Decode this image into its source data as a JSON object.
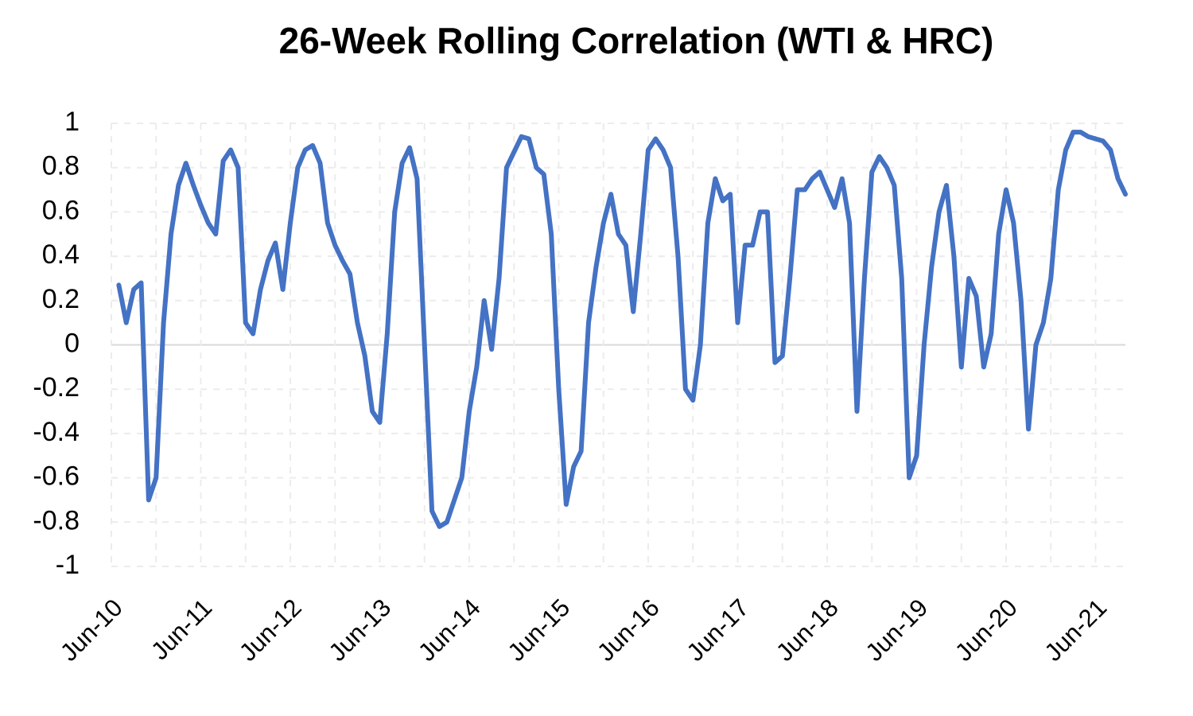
{
  "chart_data": {
    "type": "line",
    "title": "26-Week Rolling Correlation (WTI & HRC)",
    "categories": [
      "Jun-10",
      null,
      null,
      null,
      null,
      null,
      null,
      null,
      null,
      null,
      null,
      null,
      "Jun-11",
      null,
      null,
      null,
      null,
      null,
      null,
      null,
      null,
      null,
      null,
      null,
      "Jun-12",
      null,
      null,
      null,
      null,
      null,
      null,
      null,
      null,
      null,
      null,
      null,
      "Jun-13",
      null,
      null,
      null,
      null,
      null,
      null,
      null,
      null,
      null,
      null,
      null,
      "Jun-14",
      null,
      null,
      null,
      null,
      null,
      null,
      null,
      null,
      null,
      null,
      null,
      "Jun-15",
      null,
      null,
      null,
      null,
      null,
      null,
      null,
      null,
      null,
      null,
      null,
      "Jun-16",
      null,
      null,
      null,
      null,
      null,
      null,
      null,
      null,
      null,
      null,
      null,
      "Jun-17",
      null,
      null,
      null,
      null,
      null,
      null,
      null,
      null,
      null,
      null,
      null,
      "Jun-18",
      null,
      null,
      null,
      null,
      null,
      null,
      null,
      null,
      null,
      null,
      null,
      "Jun-19",
      null,
      null,
      null,
      null,
      null,
      null,
      null,
      null,
      null,
      null,
      null,
      "Jun-20",
      null,
      null,
      null,
      null,
      null,
      null,
      null,
      null,
      null,
      null,
      null,
      "Jun-21",
      null,
      null,
      null,
      null
    ],
    "values": [
      null,
      0.27,
      0.1,
      0.25,
      0.28,
      -0.7,
      -0.6,
      0.1,
      0.5,
      0.72,
      0.82,
      0.72,
      0.63,
      0.55,
      0.5,
      0.83,
      0.88,
      0.8,
      0.1,
      0.05,
      0.25,
      0.38,
      0.46,
      0.25,
      0.55,
      0.8,
      0.88,
      0.9,
      0.82,
      0.55,
      0.45,
      0.38,
      0.32,
      0.1,
      -0.05,
      -0.3,
      -0.35,
      0.05,
      0.6,
      0.82,
      0.89,
      0.75,
      0.0,
      -0.75,
      -0.82,
      -0.8,
      -0.7,
      -0.6,
      -0.3,
      -0.1,
      0.2,
      -0.02,
      0.3,
      0.8,
      0.87,
      0.94,
      0.93,
      0.8,
      0.77,
      0.5,
      -0.2,
      -0.72,
      -0.55,
      -0.48,
      0.1,
      0.35,
      0.55,
      0.68,
      0.5,
      0.45,
      0.15,
      0.5,
      0.88,
      0.93,
      0.88,
      0.8,
      0.4,
      -0.2,
      -0.25,
      0.0,
      0.55,
      0.75,
      0.65,
      0.68,
      0.1,
      0.45,
      0.45,
      0.6,
      0.6,
      -0.08,
      -0.05,
      0.3,
      0.7,
      0.7,
      0.75,
      0.78,
      0.7,
      0.62,
      0.75,
      0.55,
      -0.3,
      0.3,
      0.78,
      0.85,
      0.8,
      0.72,
      0.3,
      -0.6,
      -0.5,
      0.0,
      0.35,
      0.6,
      0.72,
      0.4,
      -0.1,
      0.3,
      0.22,
      -0.1,
      0.05,
      0.5,
      0.7,
      0.55,
      0.2,
      -0.38,
      0.0,
      0.1,
      0.3,
      0.7,
      0.88,
      0.96,
      0.96,
      0.94,
      0.93,
      0.92,
      0.88,
      0.75,
      0.68
    ],
    "color": "#4472c4",
    "ylim": [
      -1,
      1
    ],
    "yticks": [
      1,
      0.8,
      0.6,
      0.4,
      0.2,
      0,
      -0.2,
      -0.4,
      -0.6,
      -0.8,
      -1
    ],
    "grid": true
  }
}
